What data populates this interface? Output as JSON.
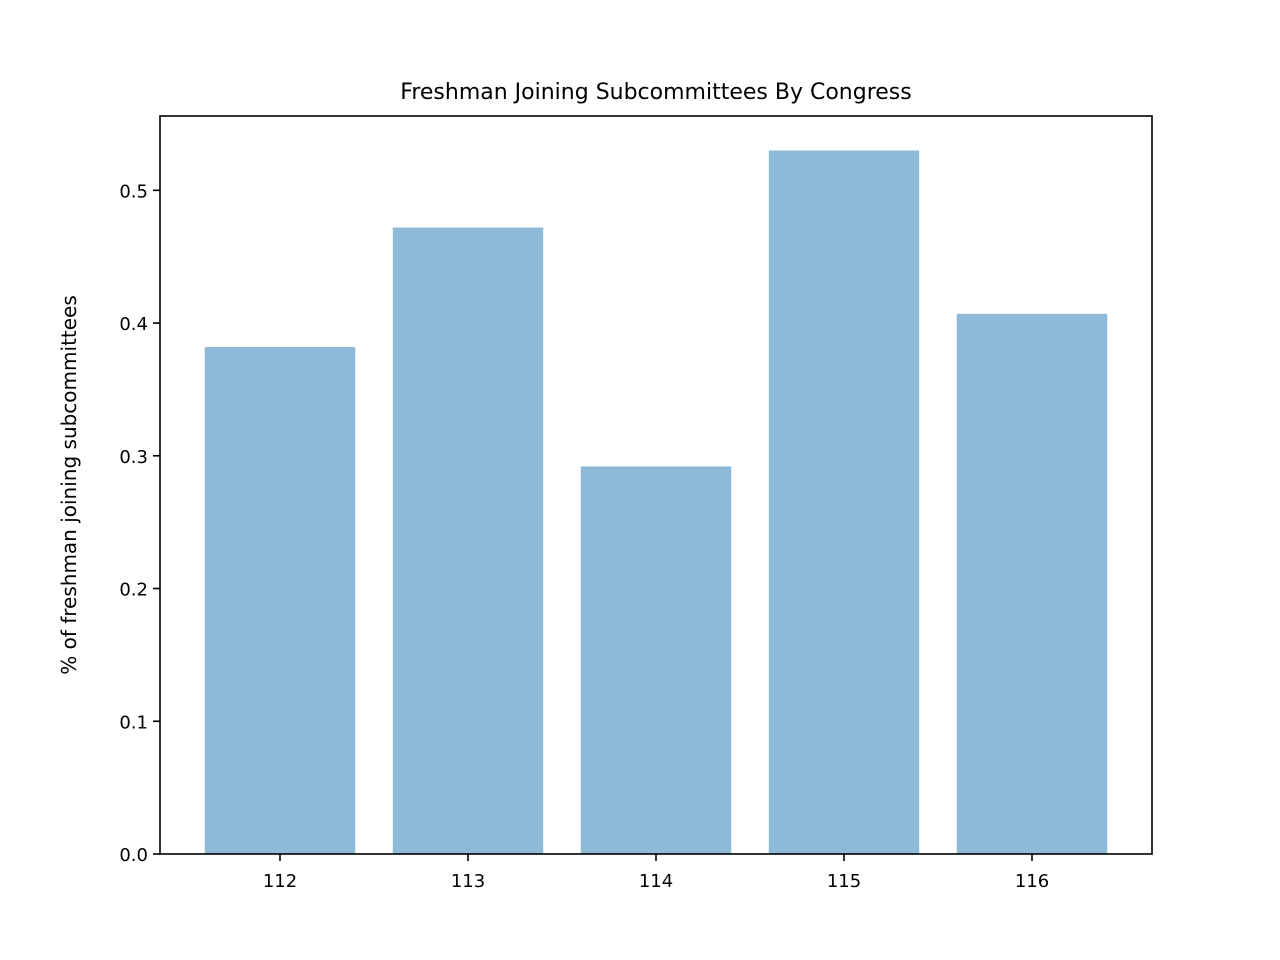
{
  "chart_data": {
    "type": "bar",
    "title": "Freshman Joining Subcommittees By Congress",
    "xlabel": "",
    "ylabel": "% of freshman joining subcommittees",
    "categories": [
      "112",
      "113",
      "114",
      "115",
      "116"
    ],
    "values": [
      0.382,
      0.472,
      0.292,
      0.53,
      0.407
    ],
    "ylim": [
      0.0,
      0.556
    ],
    "yticks": [
      "0.0",
      "0.1",
      "0.2",
      "0.3",
      "0.4",
      "0.5"
    ],
    "bar_color": "#8fb9d8",
    "grid": false,
    "legend": "none"
  }
}
